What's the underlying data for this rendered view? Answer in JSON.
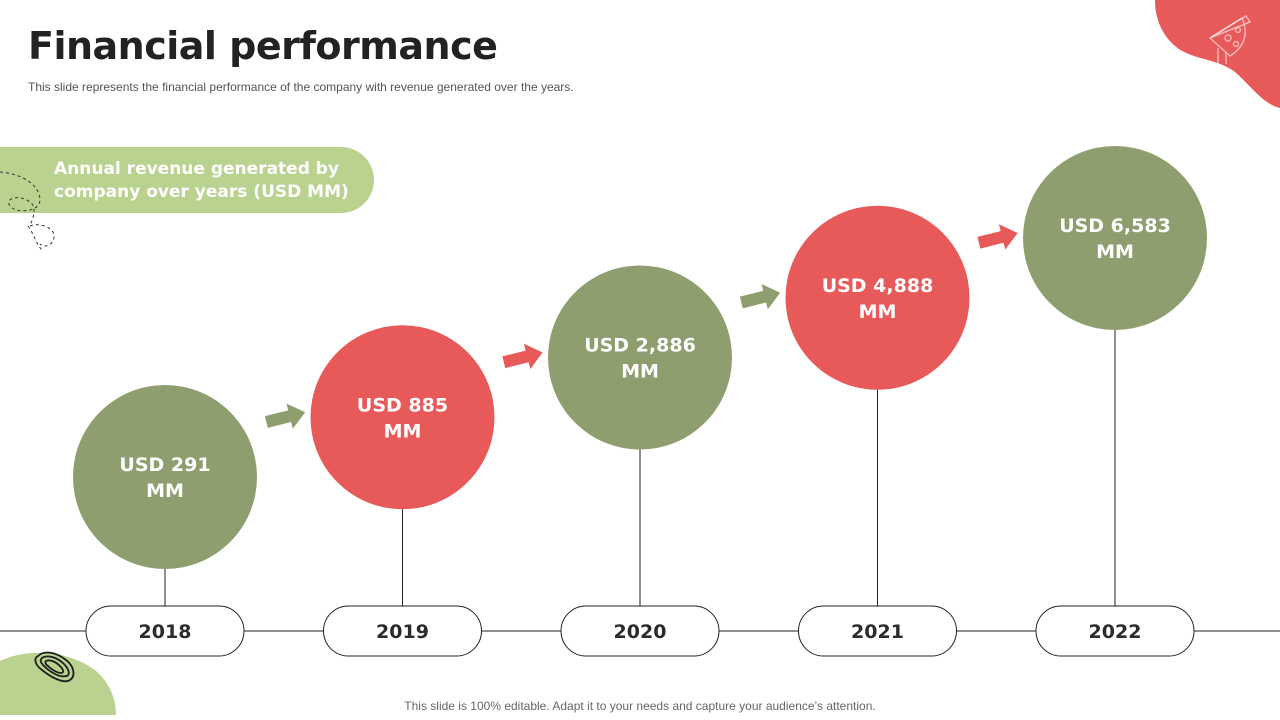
{
  "slide": {
    "title": "Financial performance",
    "subtitle": "This slide represents the financial performance of the company with revenue generated over the years.",
    "banner_text": "Annual revenue generated by company over years (USD MM)",
    "footer": "This slide is 100% editable. Adapt it to your needs and capture your audience’s attention."
  },
  "colors": {
    "green": "#8f9e6f",
    "red": "#e85959",
    "light_green": "#bad28f",
    "line": "#222222",
    "pill_text": "#2b2b2b"
  },
  "chart_data": {
    "type": "bar",
    "title": "Annual revenue generated by company over years (USD MM)",
    "categories": [
      "2018",
      "2019",
      "2020",
      "2021",
      "2022"
    ],
    "values": [
      291,
      885,
      2886,
      4888,
      6583
    ],
    "value_labels": [
      "USD 291 MM",
      "USD 885 MM",
      "USD 2,886 MM",
      "USD 4,888 MM",
      "USD 6,583 MM"
    ],
    "xlabel": "",
    "ylabel": "USD MM"
  }
}
